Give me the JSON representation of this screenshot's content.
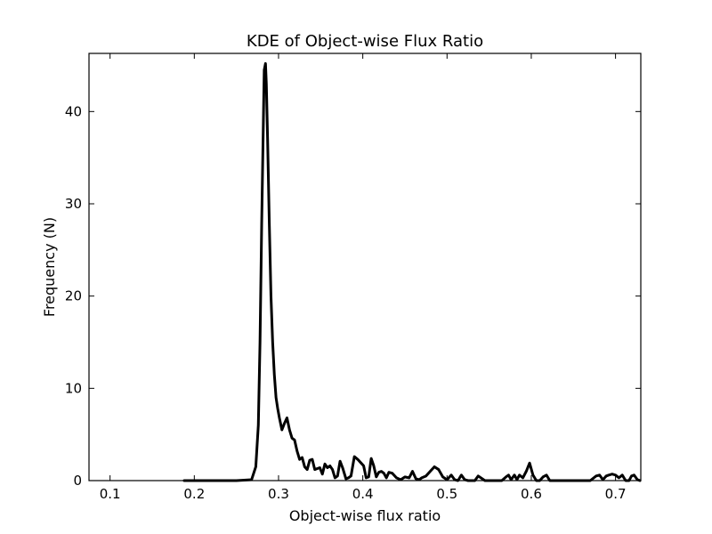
{
  "chart_data": {
    "type": "line",
    "title": "KDE of Object-wise Flux Ratio",
    "xlabel": "Object-wise flux ratio",
    "ylabel": "Frequency (N)",
    "xlim": [
      0.075,
      0.73
    ],
    "ylim": [
      0,
      46.3
    ],
    "x_ticks": [
      0.1,
      0.2,
      0.3,
      0.4,
      0.5,
      0.6,
      0.7
    ],
    "x_tick_labels": [
      "0.1",
      "0.2",
      "0.3",
      "0.4",
      "0.5",
      "0.6",
      "0.7"
    ],
    "y_ticks": [
      0,
      10,
      20,
      30,
      40
    ],
    "y_tick_labels": [
      "0",
      "10",
      "20",
      "30",
      "40"
    ],
    "grid": false,
    "line_color": "#000000",
    "series": [
      {
        "x": [
          0.188,
          0.22,
          0.25,
          0.268,
          0.273,
          0.276,
          0.278,
          0.28,
          0.282,
          0.283,
          0.2845,
          0.2855,
          0.287,
          0.289,
          0.291,
          0.293,
          0.295,
          0.297,
          0.299,
          0.301,
          0.304,
          0.307,
          0.31,
          0.313,
          0.316,
          0.319,
          0.322,
          0.325,
          0.328,
          0.331,
          0.334,
          0.337,
          0.34,
          0.343,
          0.346,
          0.349,
          0.352,
          0.355,
          0.358,
          0.361,
          0.364,
          0.367,
          0.37,
          0.373,
          0.376,
          0.38,
          0.383,
          0.386,
          0.39,
          0.394,
          0.398,
          0.401,
          0.404,
          0.407,
          0.41,
          0.413,
          0.416,
          0.419,
          0.422,
          0.425,
          0.428,
          0.431,
          0.435,
          0.44,
          0.445,
          0.45,
          0.455,
          0.459,
          0.463,
          0.467,
          0.47,
          0.475,
          0.48,
          0.485,
          0.49,
          0.495,
          0.5,
          0.505,
          0.509,
          0.513,
          0.517,
          0.521,
          0.525,
          0.529,
          0.533,
          0.537,
          0.545,
          0.555,
          0.565,
          0.57,
          0.573,
          0.576,
          0.58,
          0.583,
          0.586,
          0.59,
          0.594,
          0.598,
          0.602,
          0.606,
          0.61,
          0.614,
          0.618,
          0.622,
          0.627,
          0.631,
          0.635,
          0.64,
          0.65,
          0.66,
          0.67,
          0.677,
          0.681,
          0.685,
          0.689,
          0.692,
          0.696,
          0.7,
          0.704,
          0.708,
          0.712,
          0.716,
          0.719,
          0.722,
          0.726,
          0.729
        ],
        "y": [
          0,
          0,
          0,
          0.1,
          1.5,
          6,
          15,
          28,
          39,
          44.5,
          45.2,
          43,
          37,
          28,
          20,
          15,
          11.5,
          9,
          7.8,
          6.8,
          5.5,
          6.2,
          6.8,
          5.5,
          4.6,
          4.4,
          3.2,
          2.3,
          2.5,
          1.5,
          1.2,
          2.2,
          2.3,
          1.2,
          1.3,
          1.4,
          0.7,
          1.8,
          1.4,
          1.6,
          1.2,
          0.3,
          0.5,
          2.1,
          1.4,
          0.2,
          0.3,
          0.5,
          2.6,
          2.3,
          1.9,
          1.6,
          0.3,
          0.4,
          2.4,
          1.6,
          0.4,
          0.9,
          1.0,
          0.8,
          0.3,
          0.9,
          0.8,
          0.3,
          0.1,
          0.4,
          0.3,
          1.0,
          0.2,
          0.1,
          0.3,
          0.5,
          1.0,
          1.5,
          1.2,
          0.4,
          0.1,
          0.6,
          0.1,
          0.0,
          0.6,
          0.1,
          0.0,
          0.0,
          0.0,
          0.5,
          0.0,
          0.0,
          0.0,
          0.4,
          0.6,
          0.1,
          0.6,
          0.1,
          0.6,
          0.3,
          1.0,
          1.9,
          0.6,
          0.0,
          0.0,
          0.4,
          0.6,
          0.0,
          0.0,
          0.0,
          0.0,
          0.0,
          0.0,
          0.0,
          0.0,
          0.5,
          0.6,
          0.1,
          0.5,
          0.6,
          0.7,
          0.6,
          0.3,
          0.6,
          0.0,
          0.0,
          0.5,
          0.6,
          0.1,
          0.0
        ]
      }
    ]
  }
}
